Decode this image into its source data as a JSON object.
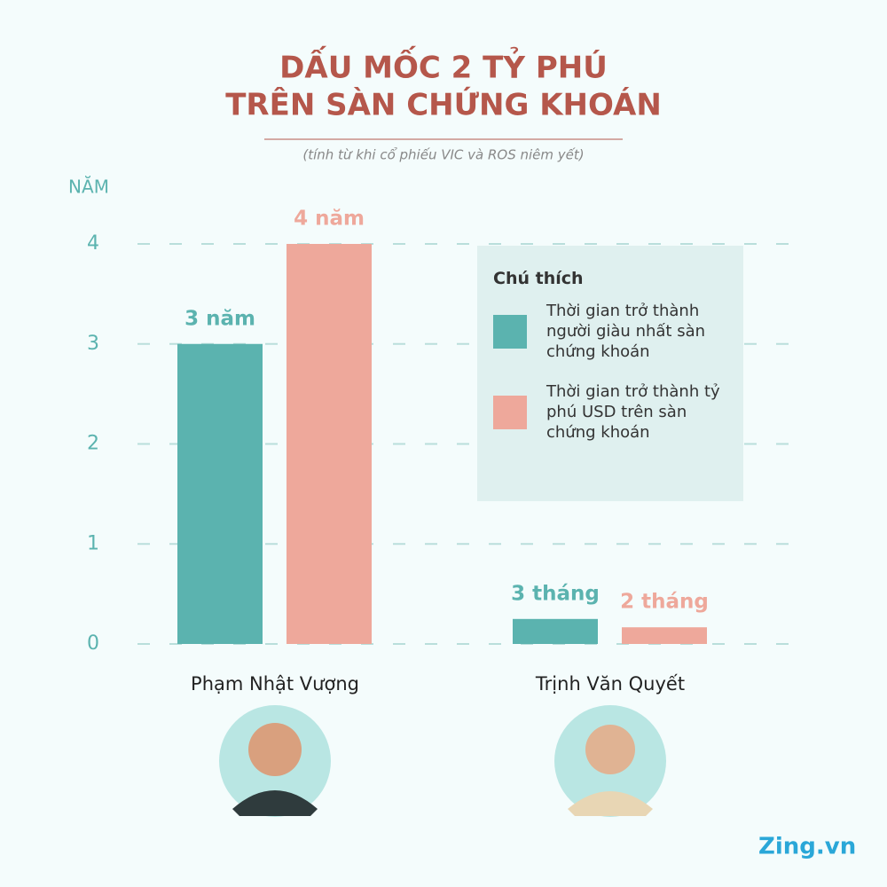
{
  "chart_data": {
    "type": "bar",
    "title": [
      "DẤU MỐC 2 TỶ PHÚ",
      "TRÊN SÀN CHỨNG KHOÁN"
    ],
    "subtitle": "(tính từ khi cổ phiếu VIC và ROS niêm yết)",
    "y_label": "NĂM",
    "legend_title": "Chú thích",
    "categories": [
      "Phạm Nhật Vượng",
      "Trịnh Văn Quyết"
    ],
    "series": [
      {
        "name": "Thời gian trở thành người giàu nhất sàn chứng khoán",
        "color": "#5bb3af",
        "values": [
          3,
          0.25
        ],
        "value_labels": [
          "3 năm",
          "3 tháng"
        ]
      },
      {
        "name": "Thời gian trở thành tỷ phú USD trên sàn chứng khoán",
        "color": "#eea89b",
        "values": [
          4,
          0.1667
        ],
        "value_labels": [
          "4 năm",
          "2 tháng"
        ]
      }
    ],
    "ylim": [
      0,
      4
    ],
    "yticks": [
      0,
      1,
      2,
      3,
      4
    ],
    "grid": true,
    "source": "Zing.vn"
  }
}
